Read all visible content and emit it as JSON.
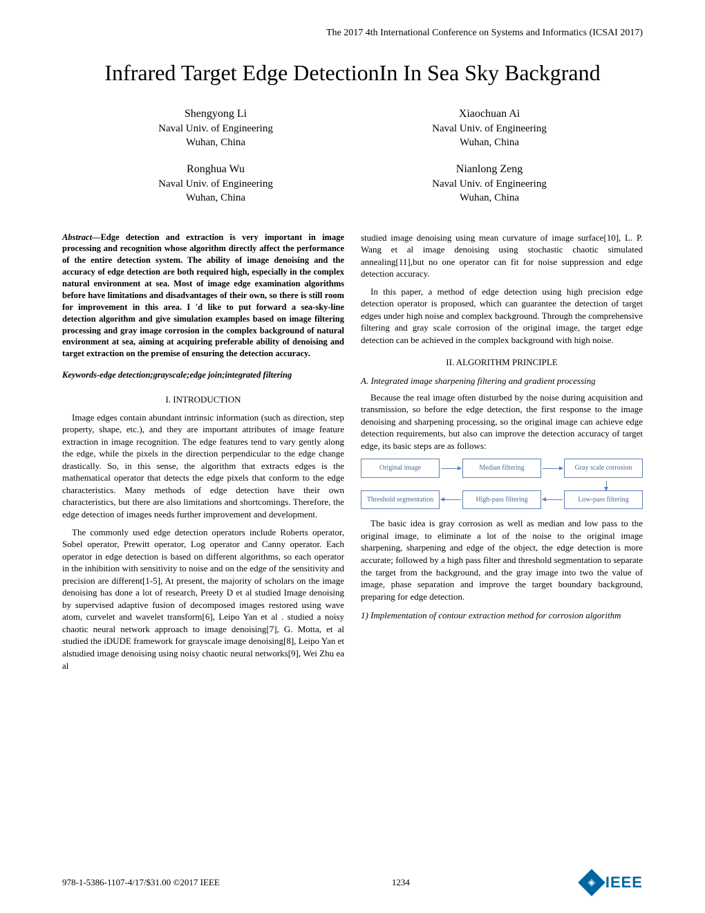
{
  "conference": "The 2017 4th International Conference on Systems and Informatics (ICSAI 2017)",
  "title": "Infrared Target Edge DetectionIn In Sea Sky Backgrand",
  "authors_left": [
    {
      "name": "Shengyong Li",
      "affil": "Naval Univ. of Engineering",
      "loc": "Wuhan, China"
    },
    {
      "name": "Ronghua Wu",
      "affil": "Naval Univ. of Engineering",
      "loc": "Wuhan, China"
    }
  ],
  "authors_right": [
    {
      "name": "Xiaochuan Ai",
      "affil": "Naval Univ. of Engineering",
      "loc": "Wuhan, China"
    },
    {
      "name": "Nianlong Zeng",
      "affil": "Naval Univ. of Engineering",
      "loc": "Wuhan, China"
    }
  ],
  "abstract_label": "Abstract—",
  "abstract": "Edge detection and extraction is very important in image processing and recognition whose algorithm directly affect the performance of the entire detection system. The ability of image denoising and the accuracy of edge detection are both required high, especially in the complex natural environment at sea. Most of image edge examination algorithms before have limitations and disadvantages of their own, so there is still room for improvement in this area. I 'd like to put forward a sea-sky-line detection algorithm and give simulation examples based on image filtering processing and gray image corrosion in the complex background of natural environment at sea, aiming at acquiring preferable ability of denoising and target extraction on the premise of ensuring the detection accuracy.",
  "keywords": "Keywords-edge detection;grayscale;edge join;integrated filtering",
  "sec1_heading": "I.    INTRODUCTION",
  "intro_p1": "Image edges contain abundant intrinsic information (such as direction, step property, shape, etc.), and they are important attributes of image feature extraction in image recognition. The edge features tend to vary gently along the edge, while the pixels in the direction perpendicular to the edge change drastically. So, in this sense, the algorithm that extracts edges is the mathematical operator that detects the edge pixels that conform to the edge characteristics. Many methods of edge detection have their own characteristics, but there are also limitations and shortcomings. Therefore, the edge detection of images needs further improvement and development.",
  "intro_p2": "The commonly used edge detection operators include Roberts operator, Sobel operator, Prewitt operator, Log operator and Canny operator. Each operator in edge detection is based on different algorithms, so each operator in the inhibition with sensitivity to noise and on the edge of the sensitivity and precision are different[1-5], At present, the majority of scholars on the image denoising has done a lot of research, Preety D et al studied Image denoising by supervised adaptive fusion of decomposed images restored using wave atom, curvelet and wavelet transform[6], Leipo Yan et al . studied a noisy chaotic neural network approach to image denoising[7], G. Motta, et al studied the iDUDE framework for grayscale image denoising[8], Leipo Yan et alstudied image denoising using noisy chaotic neural networks[9], Wei Zhu ea al",
  "col2_p1": "studied image denoising using mean curvature of image surface[10], L. P. Wang et al image denoising using stochastic chaotic simulated annealing[11],but no one operator can fit for noise suppression and edge detection accuracy.",
  "col2_p2": "In this paper, a method of edge detection using high precision edge detection operator is proposed, which can guarantee the detection of target edges under high noise and complex background. Through the comprehensive filtering and gray scale corrosion of the original image, the target edge detection can be achieved in the complex background with high noise.",
  "sec2_heading": "II.    ALGORITHM PRINCIPLE",
  "subsec_a": "A.   Integrated image sharpening filtering and gradient processing",
  "sec2_p1": "Because the real image often disturbed by the noise during acquisition and transmission, so before the edge detection, the first response to the image denoising and sharpening processing, so the original image can achieve edge detection requirements, but also can improve the detection accuracy of target edge, its basic steps are as follows:",
  "flowchart": {
    "type": "flowchart",
    "box_border_color": "#5b7fb0",
    "box_text_color": "#4a6a9a",
    "arrow_color": "#5b7fb0",
    "nodes": [
      {
        "id": "orig",
        "label": "Original image",
        "row": 0,
        "col": 0
      },
      {
        "id": "median",
        "label": "Median filtering",
        "row": 0,
        "col": 1
      },
      {
        "id": "gray",
        "label": "Gray scale corrosion",
        "row": 0,
        "col": 2
      },
      {
        "id": "thresh",
        "label": "Threshold segmentation",
        "row": 1,
        "col": 0
      },
      {
        "id": "high",
        "label": "High-pass filtering",
        "row": 1,
        "col": 1
      },
      {
        "id": "low",
        "label": "Low-pass filtering",
        "row": 1,
        "col": 2
      }
    ],
    "edges": [
      {
        "from": "orig",
        "to": "median",
        "dir": "right"
      },
      {
        "from": "median",
        "to": "gray",
        "dir": "right"
      },
      {
        "from": "gray",
        "to": "low",
        "dir": "down"
      },
      {
        "from": "low",
        "to": "high",
        "dir": "left"
      },
      {
        "from": "high",
        "to": "thresh",
        "dir": "left"
      }
    ]
  },
  "sec2_p2": "The basic idea is gray corrosion as well as median and low pass to the original image, to eliminate a lot of the noise to the original image sharpening, sharpening and edge of the object, the edge detection is more accurate; followed by a high pass filter and threshold segmentation to separate the target from the background, and the gray image into two the value of image, phase separation and improve the target boundary background, preparing for edge detection.",
  "subsec_1": "1)   Implementation of contour extraction method for corrosion algorithm",
  "footer_isbn": "978-1-5386-1107-4/17/$31.00 ©2017 IEEE",
  "page_number": "1234",
  "ieee_label": "IEEE"
}
